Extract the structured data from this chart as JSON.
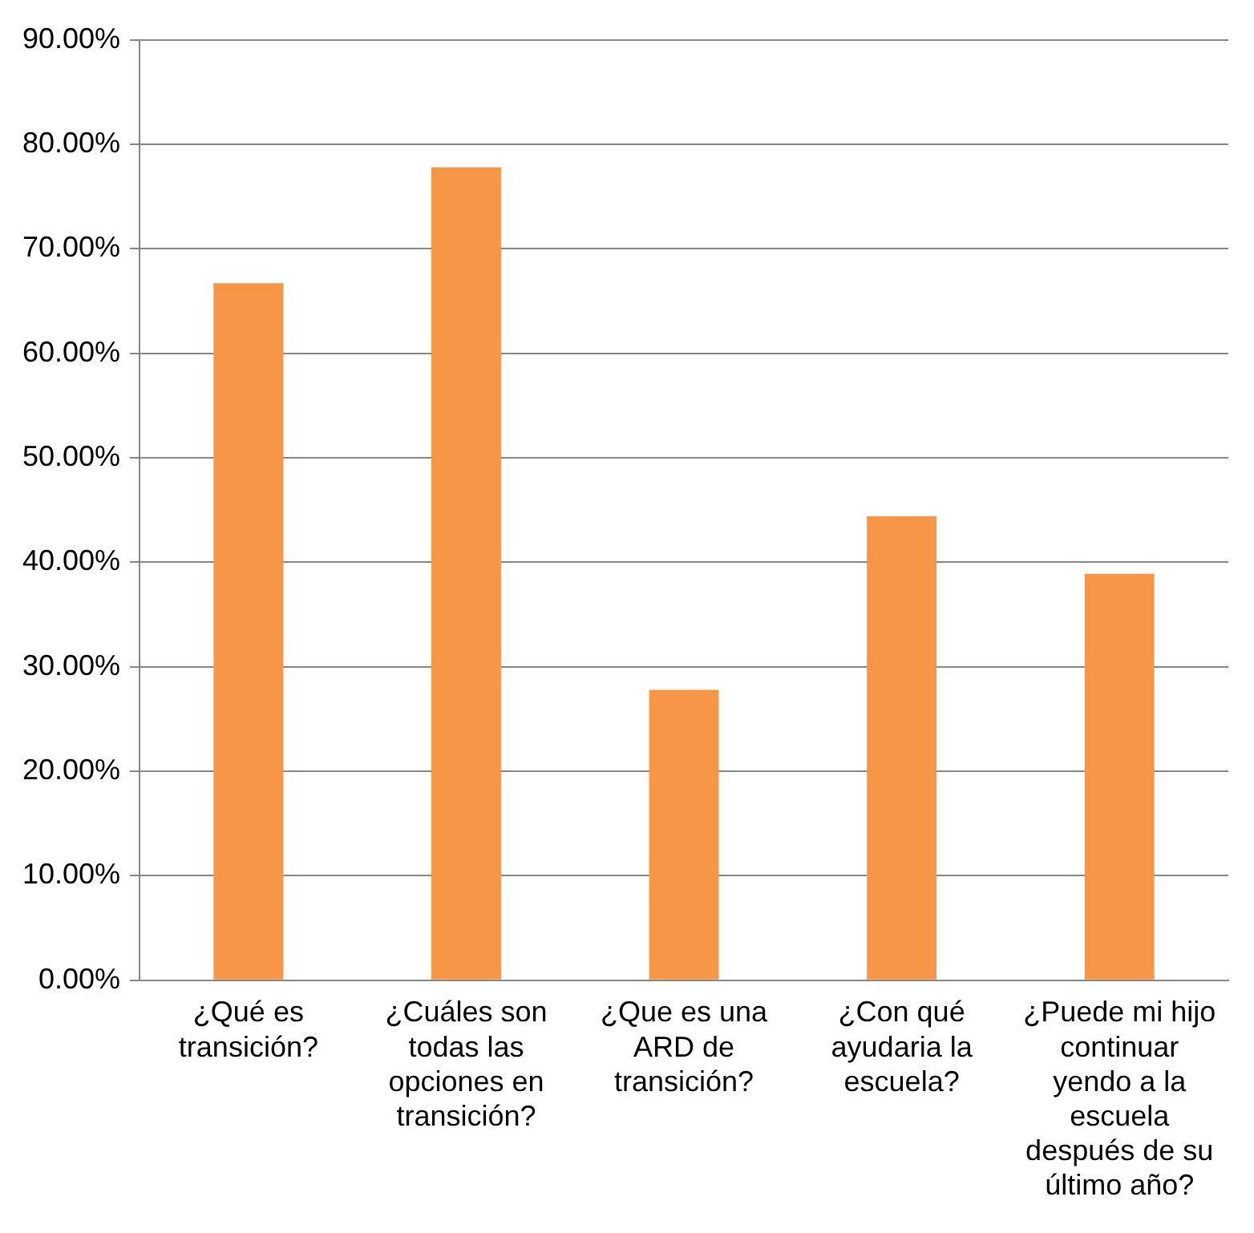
{
  "chart_data": {
    "type": "bar",
    "categories": [
      "¿Qué es transición?",
      "¿Cuáles son todas las opciones en transición?",
      "¿Que es una ARD de transición?",
      "¿Con qué ayudaria la escuela?",
      "¿Puede mi hijo continuar yendo a la escuela después de su último año?"
    ],
    "values": [
      66.7,
      77.8,
      27.8,
      44.4,
      38.9
    ],
    "color": "#f79646",
    "ylim": [
      0,
      90
    ],
    "yticks": [
      {
        "value": 0,
        "label": "0.00%"
      },
      {
        "value": 10,
        "label": "10.00%"
      },
      {
        "value": 20,
        "label": "20.00%"
      },
      {
        "value": 30,
        "label": "30.00%"
      },
      {
        "value": 40,
        "label": "40.00%"
      },
      {
        "value": 50,
        "label": "50.00%"
      },
      {
        "value": 60,
        "label": "60.00%"
      },
      {
        "value": 70,
        "label": "70.00%"
      },
      {
        "value": 80,
        "label": "80.00%"
      },
      {
        "value": 90,
        "label": "90.00%"
      }
    ],
    "grid": "y",
    "legend": false
  }
}
